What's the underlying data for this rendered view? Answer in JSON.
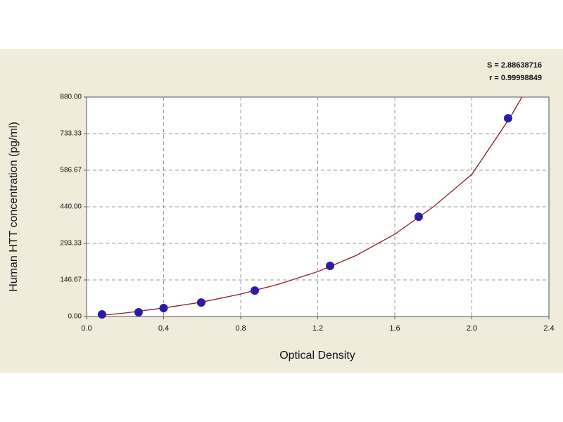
{
  "chart_data": {
    "type": "scatter",
    "x_label": "Optical Density",
    "y_label": "Human HTT concentration (pg/ml)",
    "annotations": [
      "S = 2.88638716",
      "r = 0.99998849"
    ],
    "x": [
      0.08,
      0.27,
      0.4,
      0.595,
      0.873,
      1.264,
      1.724,
      2.188
    ],
    "values": [
      8.5,
      17,
      34,
      56,
      104,
      203,
      400,
      795
    ],
    "color": "#2b1ca8",
    "fit_x": [
      0.08,
      0.2,
      0.4,
      0.6,
      0.8,
      1.0,
      1.2,
      1.4,
      1.6,
      1.8,
      2.0,
      2.2,
      2.26
    ],
    "fit_values": [
      5,
      14,
      34,
      58,
      90,
      130,
      180,
      245,
      330,
      440,
      570,
      800,
      880
    ],
    "fit_color": "#8b1c24",
    "xlim": [
      0,
      2.4
    ],
    "xticks": [
      {
        "value": 0,
        "label": "0.0"
      },
      0.4,
      0.8,
      1.2,
      1.6,
      {
        "value": 2,
        "label": "2.0"
      },
      2.4
    ],
    "ylim": [
      0,
      880
    ],
    "yticks": [
      {
        "value": 0,
        "label": "0.00"
      },
      {
        "value": 146.67,
        "label": "146.67"
      },
      {
        "value": 293.33,
        "label": "293.33"
      },
      {
        "value": 440,
        "label": "440.00"
      },
      {
        "value": 586.67,
        "label": "586.67"
      },
      {
        "value": 733.33,
        "label": "733.33"
      },
      {
        "value": 880,
        "label": "880.00"
      }
    ],
    "grid": true
  }
}
